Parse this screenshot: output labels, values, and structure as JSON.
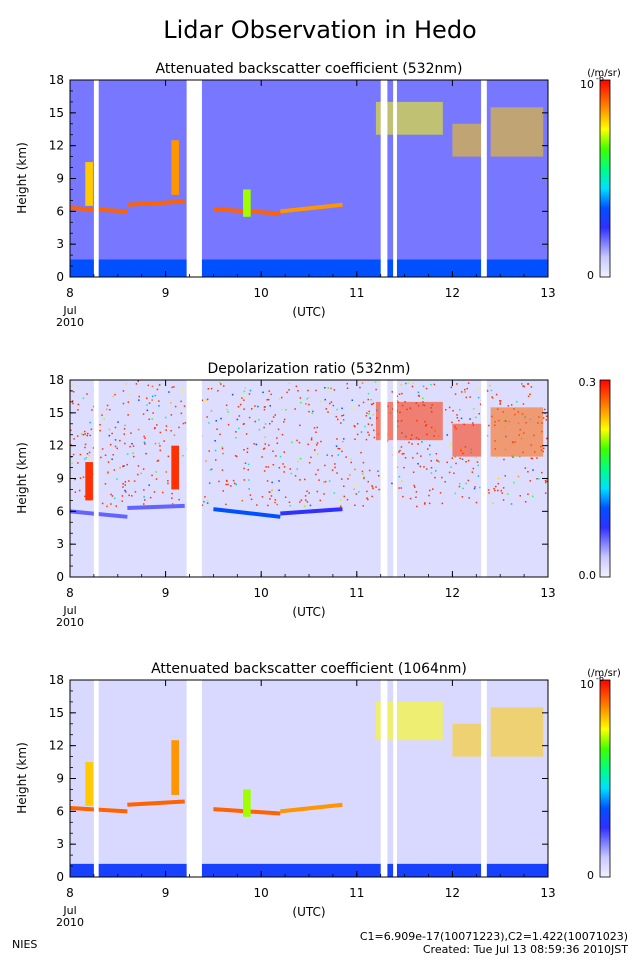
{
  "page": {
    "title": "Lidar Observation in Hedo",
    "footer_left": "NIES",
    "footer_calib": "C1=6.909e-17(10071223),C2=1.422(10071023)",
    "footer_created": "Created: Tue Jul 13 08:59:36 2010JST"
  },
  "chart_data": [
    {
      "type": "heatmap",
      "title": "Attenuated backscatter coefficient (532nm)",
      "ylabel": "Height (km)",
      "xlabel": "(UTC)",
      "ylim": [
        0,
        18
      ],
      "xlim": [
        8,
        13
      ],
      "x_ticks": [
        8,
        9,
        10,
        11,
        12,
        13
      ],
      "y_ticks": [
        0,
        3,
        6,
        9,
        12,
        15,
        18
      ],
      "x_tick_labels": [
        "8",
        "9",
        "10",
        "11",
        "12",
        "13"
      ],
      "x_date_lines": [
        "Jul",
        "2010"
      ],
      "colorbar": {
        "min_label": "0",
        "max_label": "10",
        "exp": "-6",
        "unit": "(/m/sr)"
      },
      "features": {
        "background_level": 0.18,
        "surface_layer": {
          "top": 1.6,
          "level": 0.35
        },
        "cloud_segments": [
          {
            "x": [
              8.0,
              8.6
            ],
            "h": [
              6.3,
              6.0
            ],
            "level": 0.9
          },
          {
            "x": [
              8.6,
              9.2
            ],
            "h": [
              6.6,
              6.9
            ],
            "level": 0.9
          },
          {
            "x": [
              9.5,
              10.2
            ],
            "h": [
              6.2,
              5.8
            ],
            "level": 0.9
          },
          {
            "x": [
              10.2,
              10.85
            ],
            "h": [
              6.0,
              6.6
            ],
            "level": 0.85
          }
        ],
        "tall_clouds": [
          {
            "x": 8.2,
            "h": [
              6.5,
              10.5
            ],
            "level": 0.8
          },
          {
            "x": 9.1,
            "h": [
              7.5,
              12.5
            ],
            "level": 0.85
          },
          {
            "x": 9.85,
            "h": [
              5.5,
              8.0
            ],
            "level": 0.7
          }
        ],
        "high_clouds": [
          {
            "x": [
              11.2,
              11.9
            ],
            "h": [
              13.0,
              16.0
            ],
            "level": 0.75
          },
          {
            "x": [
              12.0,
              12.35
            ],
            "h": [
              11.0,
              14.0
            ],
            "level": 0.8
          },
          {
            "x": [
              12.4,
              12.95
            ],
            "h": [
              11.0,
              15.5
            ],
            "level": 0.8
          }
        ],
        "gaps": [
          [
            8.25,
            8.3
          ],
          [
            9.22,
            9.38
          ],
          [
            11.25,
            11.32
          ],
          [
            11.38,
            11.42
          ],
          [
            12.3,
            12.36
          ]
        ]
      }
    },
    {
      "type": "heatmap",
      "title": "Depolarization ratio (532nm)",
      "ylabel": "Height (km)",
      "xlabel": "(UTC)",
      "ylim": [
        0,
        18
      ],
      "xlim": [
        8,
        13
      ],
      "x_ticks": [
        8,
        9,
        10,
        11,
        12,
        13
      ],
      "y_ticks": [
        0,
        3,
        6,
        9,
        12,
        15,
        18
      ],
      "x_tick_labels": [
        "8",
        "9",
        "10",
        "11",
        "12",
        "13"
      ],
      "x_date_lines": [
        "Jul",
        "2010"
      ],
      "colorbar": {
        "min_label": "0.0",
        "max_label": "0.3",
        "exp": "",
        "unit": ""
      },
      "features": {
        "background_level": 0.05,
        "noise_above_clouds": true,
        "cloud_segments": [
          {
            "x": [
              8.0,
              8.6
            ],
            "h": [
              6.0,
              5.5
            ],
            "level": 0.2
          },
          {
            "x": [
              8.6,
              9.2
            ],
            "h": [
              6.3,
              6.5
            ],
            "level": 0.2
          },
          {
            "x": [
              9.5,
              10.2
            ],
            "h": [
              6.2,
              5.5
            ],
            "level": 0.35
          },
          {
            "x": [
              10.2,
              10.85
            ],
            "h": [
              5.8,
              6.2
            ],
            "level": 0.25
          }
        ],
        "tall_clouds": [
          {
            "x": 8.2,
            "h": [
              7.0,
              10.5
            ],
            "level": 0.95
          },
          {
            "x": 9.1,
            "h": [
              8.0,
              12.0
            ],
            "level": 0.95
          }
        ],
        "high_clouds": [
          {
            "x": [
              11.2,
              11.9
            ],
            "h": [
              12.5,
              16.0
            ],
            "level": 0.95
          },
          {
            "x": [
              12.0,
              12.35
            ],
            "h": [
              11.0,
              14.0
            ],
            "level": 0.95
          },
          {
            "x": [
              12.4,
              12.95
            ],
            "h": [
              11.0,
              15.5
            ],
            "level": 0.9
          }
        ],
        "gaps": [
          [
            8.25,
            8.3
          ],
          [
            9.22,
            9.38
          ],
          [
            11.25,
            11.32
          ],
          [
            11.38,
            11.42
          ],
          [
            12.3,
            12.36
          ]
        ]
      }
    },
    {
      "type": "heatmap",
      "title": "Attenuated backscatter coefficient (1064nm)",
      "ylabel": "Height (km)",
      "xlabel": "(UTC)",
      "ylim": [
        0,
        18
      ],
      "xlim": [
        8,
        13
      ],
      "x_ticks": [
        8,
        9,
        10,
        11,
        12,
        13
      ],
      "y_ticks": [
        0,
        3,
        6,
        9,
        12,
        15,
        18
      ],
      "x_tick_labels": [
        "8",
        "9",
        "10",
        "11",
        "12",
        "13"
      ],
      "x_date_lines": [
        "Jul",
        "2010"
      ],
      "colorbar": {
        "min_label": "0",
        "max_label": "10",
        "exp": "-6",
        "unit": "(/m/sr)"
      },
      "features": {
        "background_level": 0.06,
        "surface_layer": {
          "top": 1.2,
          "level": 0.3
        },
        "cloud_segments": [
          {
            "x": [
              8.0,
              8.6
            ],
            "h": [
              6.3,
              6.0
            ],
            "level": 0.9
          },
          {
            "x": [
              8.6,
              9.2
            ],
            "h": [
              6.6,
              6.9
            ],
            "level": 0.9
          },
          {
            "x": [
              9.5,
              10.2
            ],
            "h": [
              6.2,
              5.8
            ],
            "level": 0.9
          },
          {
            "x": [
              10.2,
              10.85
            ],
            "h": [
              6.0,
              6.6
            ],
            "level": 0.85
          }
        ],
        "tall_clouds": [
          {
            "x": 8.2,
            "h": [
              6.5,
              10.5
            ],
            "level": 0.8
          },
          {
            "x": 9.1,
            "h": [
              7.5,
              12.5
            ],
            "level": 0.85
          },
          {
            "x": 9.85,
            "h": [
              5.5,
              8.0
            ],
            "level": 0.7
          }
        ],
        "high_clouds": [
          {
            "x": [
              11.2,
              11.9
            ],
            "h": [
              12.5,
              16.0
            ],
            "level": 0.75
          },
          {
            "x": [
              12.0,
              12.35
            ],
            "h": [
              11.0,
              14.0
            ],
            "level": 0.8
          },
          {
            "x": [
              12.4,
              12.95
            ],
            "h": [
              11.0,
              15.5
            ],
            "level": 0.8
          }
        ],
        "gaps": [
          [
            8.25,
            8.3
          ],
          [
            9.22,
            9.38
          ],
          [
            11.25,
            11.32
          ],
          [
            11.38,
            11.42
          ],
          [
            12.3,
            12.36
          ]
        ]
      }
    }
  ]
}
